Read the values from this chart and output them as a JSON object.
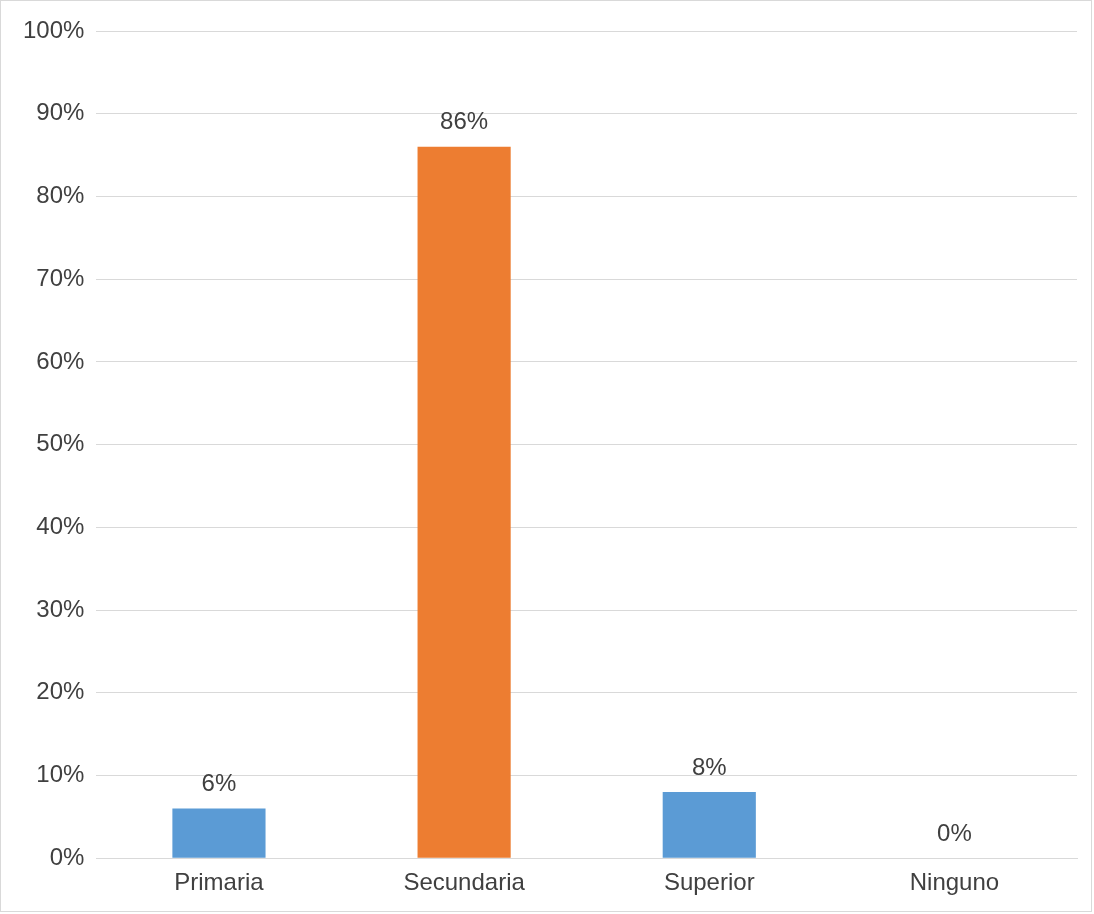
{
  "chart_data": {
    "type": "bar",
    "categories": [
      "Primaria",
      "Secundaria",
      "Superior",
      "Ninguno"
    ],
    "values": [
      6,
      86,
      8,
      0
    ],
    "colors": [
      "#5b9bd5",
      "#ed7d31",
      "#5b9bd5",
      "#5b9bd5"
    ],
    "ylim": [
      0,
      100
    ],
    "yticks": [
      {
        "value": 0,
        "label": "0%"
      },
      {
        "value": 10,
        "label": "10%"
      },
      {
        "value": 20,
        "label": "20%"
      },
      {
        "value": 30,
        "label": "30%"
      },
      {
        "value": 40,
        "label": "40%"
      },
      {
        "value": 50,
        "label": "50%"
      },
      {
        "value": 60,
        "label": "60%"
      },
      {
        "value": 70,
        "label": "70%"
      },
      {
        "value": 80,
        "label": "80%"
      },
      {
        "value": 90,
        "label": "90%"
      },
      {
        "value": 100,
        "label": "100%"
      }
    ],
    "value_labels": [
      "6%",
      "86%",
      "8%",
      "0%"
    ],
    "grid": "y",
    "legend": false
  }
}
